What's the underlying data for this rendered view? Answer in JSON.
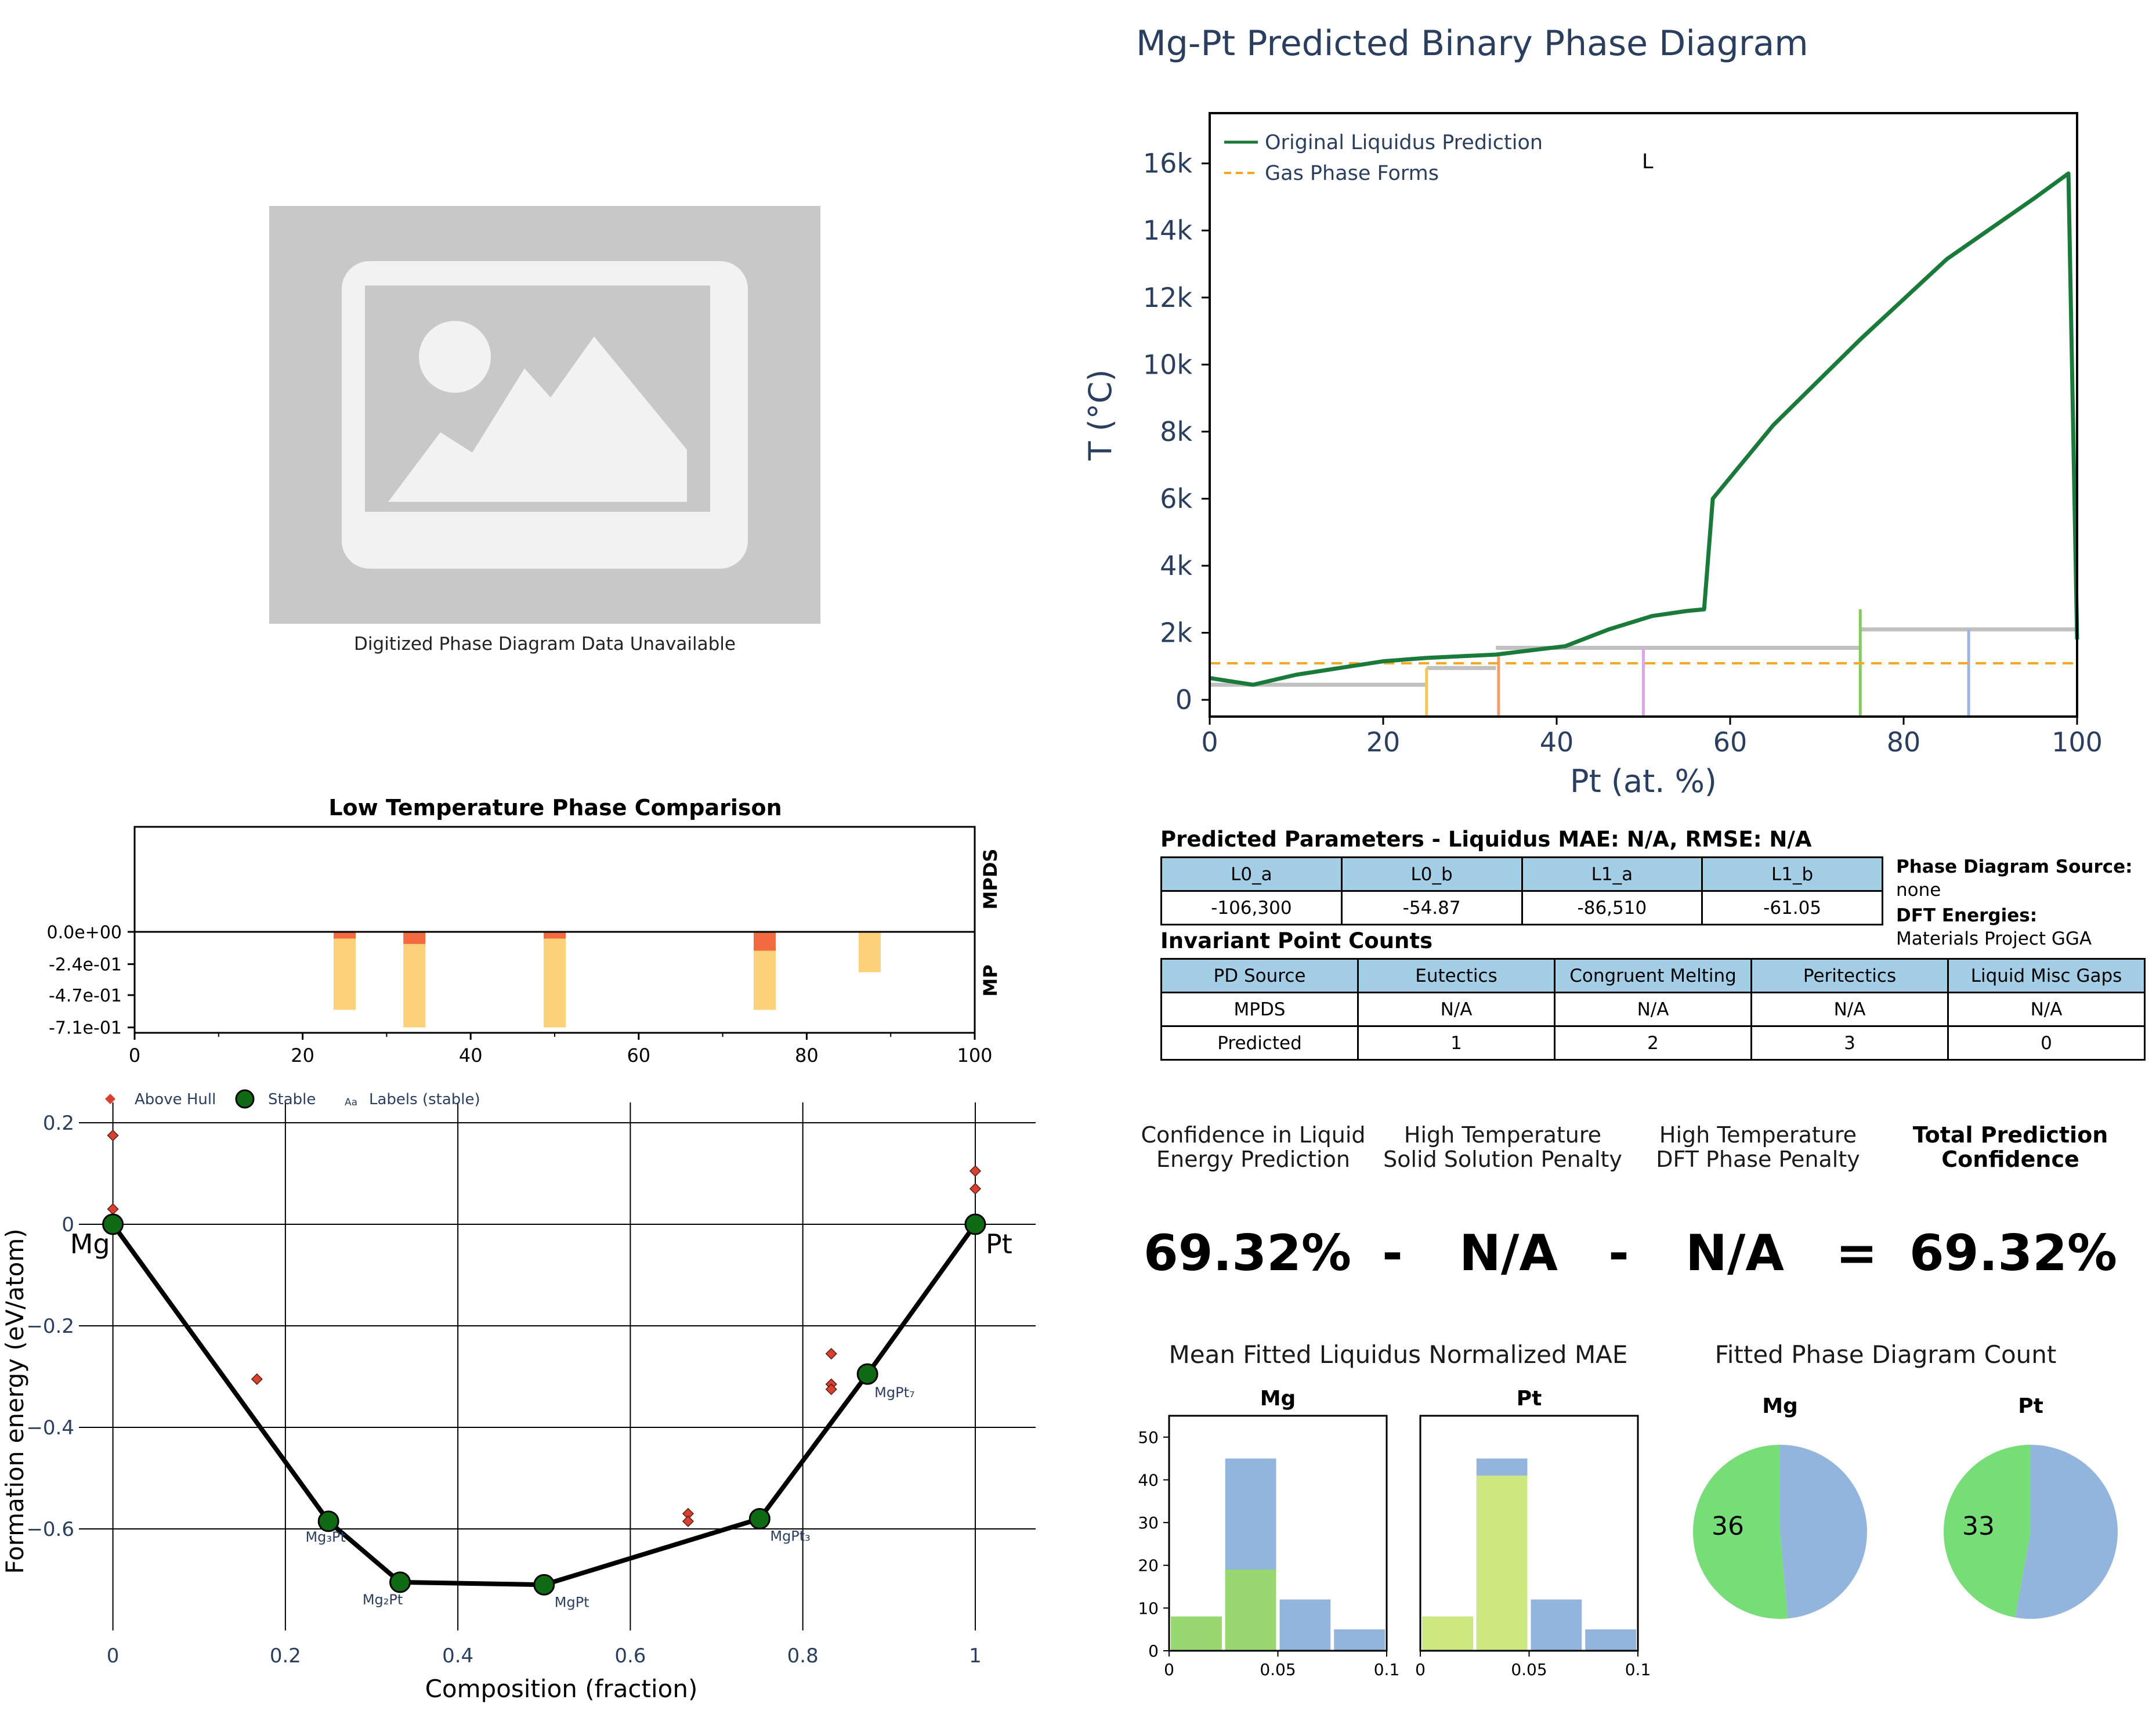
{
  "placeholder": {
    "caption": "Digitized Phase Diagram Data Unavailable"
  },
  "phase_title": "Mg-Pt Predicted Binary Phase Diagram",
  "params_title": "Predicted Parameters - Liquidus MAE: N/A, RMSE: N/A",
  "params_table": {
    "headers": [
      "L0_a",
      "L0_b",
      "L1_a",
      "L1_b"
    ],
    "values": [
      "-106,300",
      "-54.87",
      "-86,510",
      "-61.05"
    ]
  },
  "side_info": {
    "pd_source_label": "Phase Diagram Source:",
    "pd_source_value": "none",
    "dft_label": "DFT Energies:",
    "dft_value": "Materials Project GGA"
  },
  "invariant_title": "Invariant Point Counts",
  "invariant_table": {
    "headers": [
      "PD Source",
      "Eutectics",
      "Congruent Melting",
      "Peritectics",
      "Liquid Misc Gaps"
    ],
    "rows": [
      [
        "MPDS",
        "N/A",
        "N/A",
        "N/A",
        "N/A"
      ],
      [
        "Predicted",
        "1",
        "2",
        "3",
        "0"
      ]
    ]
  },
  "confidence": {
    "h1": "Confidence in Liquid",
    "h1b": "Energy Prediction",
    "h2": "High Temperature",
    "h2b": "Solid Solution Penalty",
    "h3": "High Temperature",
    "h3b": "DFT Phase Penalty",
    "h4": "Total Prediction",
    "h4b": "Confidence",
    "v1": "69.32%",
    "op1": "-",
    "v2": "N/A",
    "op2": "-",
    "v3": "N/A",
    "op3": "=",
    "v4": "69.32%"
  },
  "colors": {
    "liquidus": "#1a7a3a",
    "gas": "#f5a623",
    "hull_green": "#0f6b13",
    "above_hull": "#d8412f",
    "mp_bar": "#fcd17a",
    "mp_bar_top": "#f26a3f",
    "hist_blue": "#93b4dc",
    "hist_green": "#99d870",
    "hist_lime": "#cbe97e",
    "pie_green": "#77dd77",
    "pie_blue": "#93b4dc",
    "axis_text": "#2a3f5f",
    "table_head": "#a4cde6"
  },
  "chart_data": [
    {
      "id": "phase_diagram",
      "type": "line",
      "title": "Mg-Pt Predicted Binary Phase Diagram",
      "xlabel": "Pt (at. %)",
      "ylabel": "T (°C)",
      "xlim": [
        0,
        100
      ],
      "ylim": [
        -500,
        17500
      ],
      "xticks": [
        0,
        20,
        40,
        60,
        80,
        100
      ],
      "xtick_labels": [
        "0",
        "20",
        "40",
        "60",
        "80",
        "100"
      ],
      "yticks": [
        0,
        2000,
        4000,
        6000,
        8000,
        10000,
        12000,
        14000,
        16000
      ],
      "ytick_labels": [
        "0",
        "2k",
        "4k",
        "6k",
        "8k",
        "10k",
        "12k",
        "14k",
        "16k"
      ],
      "legend": [
        "Original Liquidus Prediction",
        "Gas Phase Forms"
      ],
      "legend_position": "top-left",
      "region_label": "L",
      "liquidus": {
        "name": "Original Liquidus Prediction",
        "x": [
          0,
          5,
          10,
          15,
          20,
          25,
          33,
          41,
          46,
          51,
          55,
          57,
          58,
          65,
          75,
          85,
          95,
          99,
          100
        ],
        "y": [
          650,
          450,
          750,
          950,
          1150,
          1250,
          1350,
          1600,
          2100,
          2500,
          2650,
          2700,
          6000,
          8200,
          10750,
          13150,
          14950,
          15700,
          1800
        ]
      },
      "gas_phase": {
        "name": "Gas Phase Forms",
        "y": 1090
      },
      "solid_lines": [
        {
          "x1": 0,
          "x2": 25,
          "y": 450
        },
        {
          "x1": 25,
          "x2": 33,
          "y": 950
        },
        {
          "x1": 33,
          "x2": 75,
          "y": 1550
        },
        {
          "x1": 75,
          "x2": 100,
          "y": 2100
        }
      ],
      "compound_lines": [
        {
          "x": 25,
          "y": 950,
          "color": "#f0c75e"
        },
        {
          "x": 33.3,
          "y": 1350,
          "color": "#f0a070"
        },
        {
          "x": 50,
          "y": 1550,
          "color": "#d8a8e8"
        },
        {
          "x": 75,
          "y": 2700,
          "color": "#88c860"
        },
        {
          "x": 87.5,
          "y": 2100,
          "color": "#9ab4e8"
        }
      ]
    },
    {
      "id": "low_temp_comparison",
      "type": "bar",
      "title": "Low Temperature Phase Comparison",
      "right_labels": [
        "MPDS",
        "MP"
      ],
      "xlim": [
        0,
        100
      ],
      "xticks": [
        0,
        20,
        40,
        60,
        80,
        100
      ],
      "ytick_labels": [
        "0.0e+00",
        "-2.4e-01",
        "-4.7e-01",
        "-7.1e-01"
      ],
      "yticks": [
        0,
        -0.24,
        -0.47,
        -0.71
      ],
      "ylim": [
        -0.75,
        0.78
      ],
      "bars": [
        {
          "x": 25,
          "value": -0.58,
          "top": -0.05
        },
        {
          "x": 33.3,
          "value": -0.71,
          "top": -0.09
        },
        {
          "x": 50,
          "value": -0.71,
          "top": -0.05
        },
        {
          "x": 75,
          "value": -0.58,
          "top": -0.14
        },
        {
          "x": 87.5,
          "value": -0.3,
          "top": 0
        }
      ]
    },
    {
      "id": "convex_hull",
      "type": "scatter",
      "xlabel": "Composition (fraction)",
      "ylabel": "Formation energy (eV/atom)",
      "xlim": [
        -0.03,
        1.07
      ],
      "ylim": [
        -0.8,
        0.24
      ],
      "xticks": [
        0,
        0.2,
        0.4,
        0.6,
        0.8,
        1
      ],
      "xtick_labels": [
        "0",
        "0.2",
        "0.4",
        "0.6",
        "0.8",
        "1"
      ],
      "yticks": [
        0.2,
        0,
        -0.2,
        -0.4,
        -0.6
      ],
      "ytick_labels": [
        "0.2",
        "0",
        "−0.2",
        "−0.4",
        "−0.6"
      ],
      "legend": [
        "Above Hull",
        "Stable",
        "Labels (stable)"
      ],
      "legend_symbol_text": "Aa",
      "stable": [
        {
          "x": 0,
          "y": 0,
          "label": "Mg"
        },
        {
          "x": 0.25,
          "y": -0.585,
          "label": "Mg₃Pt"
        },
        {
          "x": 0.333,
          "y": -0.705,
          "label": "Mg₂Pt"
        },
        {
          "x": 0.5,
          "y": -0.71,
          "label": "MgPt"
        },
        {
          "x": 0.75,
          "y": -0.58,
          "label": "MgPt₃"
        },
        {
          "x": 0.875,
          "y": -0.295,
          "label": "MgPt₇"
        },
        {
          "x": 1,
          "y": 0,
          "label": "Pt"
        }
      ],
      "above_hull": [
        {
          "x": 0,
          "y": 0.175
        },
        {
          "x": 0,
          "y": 0.03
        },
        {
          "x": 0,
          "y": 0.01
        },
        {
          "x": 0.167,
          "y": -0.305
        },
        {
          "x": 0.25,
          "y": -0.58
        },
        {
          "x": 0.667,
          "y": -0.57
        },
        {
          "x": 0.667,
          "y": -0.585
        },
        {
          "x": 0.833,
          "y": -0.255
        },
        {
          "x": 0.833,
          "y": -0.315
        },
        {
          "x": 0.833,
          "y": -0.325
        },
        {
          "x": 1,
          "y": 0.105
        },
        {
          "x": 1,
          "y": 0.07
        }
      ]
    },
    {
      "id": "mae_histograms",
      "type": "bar",
      "title": "Mean Fitted Liquidus Normalized MAE",
      "panels": [
        {
          "name": "Mg",
          "bins": [
            0,
            0.025,
            0.05,
            0.075,
            0.1
          ],
          "blue": [
            8,
            45,
            12,
            5
          ],
          "green": [
            8,
            19,
            0,
            0
          ]
        },
        {
          "name": "Pt",
          "bins": [
            0,
            0.025,
            0.05,
            0.075,
            0.1
          ],
          "blue": [
            8,
            45,
            12,
            5
          ],
          "lime": [
            8,
            41,
            0,
            0
          ]
        }
      ],
      "ylim": [
        0,
        55
      ],
      "yticks": [
        0,
        10,
        20,
        30,
        40,
        50
      ],
      "xticks": [
        0,
        0.05,
        0.1
      ],
      "xtick_labels": [
        "0",
        "0.05",
        "0.1"
      ]
    },
    {
      "id": "pd_count_pies",
      "type": "pie",
      "title": "Fitted Phase Diagram Count",
      "pies": [
        {
          "name": "Mg",
          "green": 36,
          "blue": 34,
          "label": "36"
        },
        {
          "name": "Pt",
          "green": 33,
          "blue": 37,
          "label": "33"
        }
      ]
    }
  ]
}
